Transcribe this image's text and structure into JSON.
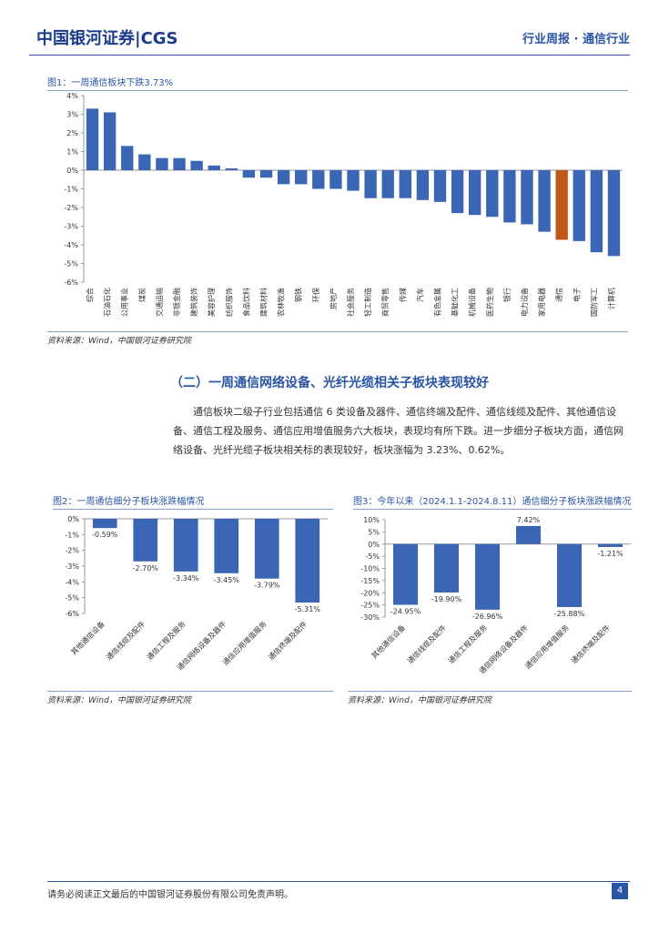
{
  "header": {
    "logo": "中国银河证券|CGS",
    "right": "行业周报 · 通信行业"
  },
  "section": {
    "heading": "（二）一周通信网络设备、光纤光缆相关子板块表现较好",
    "paragraph": "通信板块二级子行业包括通信 6 类设备及器件、通信终端及配件、通信线缆及配件、其他通信设备、通信工程及服务、通信应用增值服务六大板块，表现均有所下跌。进一步细分子板块方面，通信网络设备、光纤光缆子板块相关标的表现较好，板块涨幅为 3.23%、0.62%。"
  },
  "footer": {
    "text": "请务必阅读正文最后的中国银河证券股份有限公司免责声明。",
    "page": "4"
  },
  "chart_data": [
    {
      "type": "bar",
      "title": "图1：一周通信板块下跌3.73%",
      "source": "资料来源：Wind，中国银河证券研究院",
      "categories": [
        "综合",
        "石油石化",
        "公用事业",
        "煤炭",
        "交通运输",
        "非银金融",
        "建筑装饰",
        "美容护理",
        "纺织服饰",
        "食品饮料",
        "建筑材料",
        "农林牧渔",
        "钢铁",
        "环保",
        "房地产",
        "社会服务",
        "轻工制造",
        "商贸零售",
        "传媒",
        "汽车",
        "有色金属",
        "基础化工",
        "机械设备",
        "医药生物",
        "银行",
        "电力设备",
        "家用电器",
        "通信",
        "电子",
        "国防军工",
        "计算机"
      ],
      "values": [
        3.3,
        3.1,
        1.3,
        0.85,
        0.65,
        0.65,
        0.5,
        0.25,
        0.1,
        -0.4,
        -0.4,
        -0.75,
        -0.75,
        -1.0,
        -1.0,
        -1.1,
        -1.5,
        -1.5,
        -1.5,
        -1.6,
        -1.7,
        -2.3,
        -2.4,
        -2.5,
        -2.8,
        -2.9,
        -3.3,
        -3.73,
        -3.8,
        -4.4,
        -4.6
      ],
      "colors": [
        "#3a66b5",
        "#3a66b5",
        "#3a66b5",
        "#3a66b5",
        "#3a66b5",
        "#3a66b5",
        "#3a66b5",
        "#3a66b5",
        "#3a66b5",
        "#3a66b5",
        "#3a66b5",
        "#3a66b5",
        "#3a66b5",
        "#3a66b5",
        "#3a66b5",
        "#3a66b5",
        "#3a66b5",
        "#3a66b5",
        "#3a66b5",
        "#3a66b5",
        "#3a66b5",
        "#3a66b5",
        "#3a66b5",
        "#3a66b5",
        "#3a66b5",
        "#3a66b5",
        "#3a66b5",
        "#c0581a",
        "#3a66b5",
        "#3a66b5",
        "#3a66b5"
      ],
      "ylim": [
        -6,
        4
      ],
      "yticks": [
        {
          "value": 4,
          "label": "4%"
        },
        {
          "value": 3,
          "label": "3%"
        },
        {
          "value": 2,
          "label": "2%"
        },
        {
          "value": 1,
          "label": "1%"
        },
        {
          "value": 0,
          "label": "0%"
        },
        {
          "value": -1,
          "label": "-1%"
        },
        {
          "value": -2,
          "label": "-2%"
        },
        {
          "value": -3,
          "label": "-3%"
        },
        {
          "value": -4,
          "label": "-4%"
        },
        {
          "value": -5,
          "label": "-5%"
        },
        {
          "value": -6,
          "label": "-6%"
        }
      ],
      "grid": false
    },
    {
      "type": "bar",
      "title": "图2：一周通信细分子板块涨跌幅情况",
      "source": "资料来源：Wind，中国银河证券研究院",
      "categories": [
        "其他通信设备",
        "通信线缆及配件",
        "通信工程及服务",
        "通信网络设备及器件",
        "通信应用增值服务",
        "通信终端及配件"
      ],
      "values": [
        -0.59,
        -2.7,
        -3.34,
        -3.45,
        -3.79,
        -5.31
      ],
      "value_labels": [
        "-0.59%",
        "-2.70%",
        "-3.34%",
        "-3.45%",
        "-3.79%",
        "-5.31%"
      ],
      "color": "#3a66b5",
      "ylim": [
        -6,
        0
      ],
      "yticks": [
        {
          "value": 0,
          "label": "0%"
        },
        {
          "value": -1,
          "label": "-1%"
        },
        {
          "value": -2,
          "label": "-2%"
        },
        {
          "value": -3,
          "label": "-3%"
        },
        {
          "value": -4,
          "label": "-4%"
        },
        {
          "value": -5,
          "label": "-5%"
        },
        {
          "value": -6,
          "label": "-6%"
        }
      ],
      "grid": false
    },
    {
      "type": "bar",
      "title": "图3：今年以来（2024.1.1-2024.8.11）通信细分子板块涨跌幅情况",
      "source": "资料来源：Wind，中国银河证券研究院",
      "categories": [
        "其他通信设备",
        "通信线缆及配件",
        "通信工程及服务",
        "通信网络设备及器件",
        "通信应用增值服务",
        "通信终端及配件"
      ],
      "values": [
        -24.95,
        -19.9,
        -26.96,
        7.42,
        -25.88,
        -1.21
      ],
      "value_labels": [
        "-24.95%",
        "-19.90%",
        "-26.96%",
        "7.42%",
        "-25.88%",
        "-1.21%"
      ],
      "color": "#3a66b5",
      "ylim": [
        -30,
        10
      ],
      "yticks": [
        {
          "value": 10,
          "label": "10%"
        },
        {
          "value": 5,
          "label": "5%"
        },
        {
          "value": 0,
          "label": "0%"
        },
        {
          "value": -5,
          "label": "-5%"
        },
        {
          "value": -10,
          "label": "-10%"
        },
        {
          "value": -15,
          "label": "-15%"
        },
        {
          "value": -20,
          "label": "-20%"
        },
        {
          "value": -25,
          "label": "-25%"
        },
        {
          "value": -30,
          "label": "-30%"
        }
      ],
      "grid": false
    }
  ]
}
